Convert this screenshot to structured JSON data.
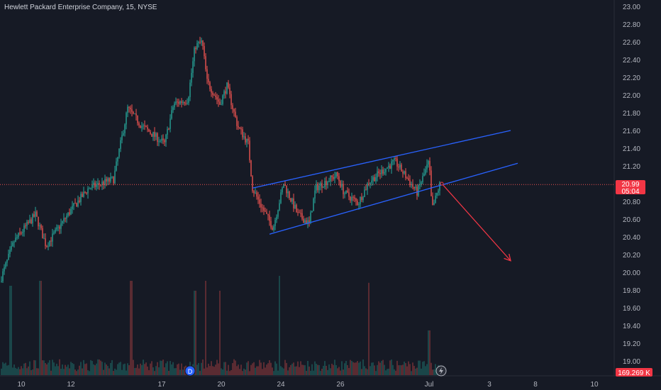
{
  "header": {
    "title": "Hewlett Packard Enterprise Company, 15, NYSE"
  },
  "colors": {
    "up": "#26a69a",
    "down": "#ef5350",
    "channel": "#2962ff",
    "arrow": "#f23645",
    "background": "#161a25"
  },
  "price_tag": {
    "price": "20.99",
    "countdown": "05:04"
  },
  "volume_tag": {
    "value": "169.269 K"
  },
  "event_badge": {
    "label": "D"
  },
  "chart_data": {
    "type": "candlestick",
    "title": "Hewlett Packard Enterprise Company, 15, NYSE",
    "ylim": [
      18.9,
      23.05
    ],
    "y_ticks": [
      "23.00",
      "22.80",
      "22.60",
      "22.40",
      "22.20",
      "22.00",
      "21.80",
      "21.60",
      "21.40",
      "21.20",
      "21.00",
      "20.80",
      "20.60",
      "20.40",
      "20.20",
      "20.00",
      "19.80",
      "19.60",
      "19.40",
      "19.20",
      "19.00"
    ],
    "x_ticks": [
      "10",
      "12",
      "17",
      "20",
      "24",
      "26",
      "Jul",
      "3",
      "8",
      "10"
    ],
    "current_price": 20.99,
    "anchors": [
      {
        "x": 0,
        "y": 19.9
      },
      {
        "x": 20,
        "y": 20.35
      },
      {
        "x": 50,
        "y": 20.65
      },
      {
        "x": 65,
        "y": 20.3
      },
      {
        "x": 100,
        "y": 20.7
      },
      {
        "x": 125,
        "y": 20.95
      },
      {
        "x": 160,
        "y": 21.05
      },
      {
        "x": 180,
        "y": 21.85
      },
      {
        "x": 200,
        "y": 21.65
      },
      {
        "x": 232,
        "y": 21.45
      },
      {
        "x": 245,
        "y": 21.9
      },
      {
        "x": 265,
        "y": 21.95
      },
      {
        "x": 275,
        "y": 22.55
      },
      {
        "x": 285,
        "y": 22.6
      },
      {
        "x": 292,
        "y": 22.15
      },
      {
        "x": 310,
        "y": 21.9
      },
      {
        "x": 320,
        "y": 22.1
      },
      {
        "x": 335,
        "y": 21.65
      },
      {
        "x": 350,
        "y": 21.45
      },
      {
        "x": 356,
        "y": 20.95
      },
      {
        "x": 365,
        "y": 20.8
      },
      {
        "x": 385,
        "y": 20.5
      },
      {
        "x": 400,
        "y": 21.0
      },
      {
        "x": 420,
        "y": 20.65
      },
      {
        "x": 436,
        "y": 20.55
      },
      {
        "x": 445,
        "y": 20.95
      },
      {
        "x": 475,
        "y": 21.1
      },
      {
        "x": 485,
        "y": 20.9
      },
      {
        "x": 505,
        "y": 20.78
      },
      {
        "x": 520,
        "y": 21.02
      },
      {
        "x": 540,
        "y": 21.15
      },
      {
        "x": 557,
        "y": 21.25
      },
      {
        "x": 575,
        "y": 21.05
      },
      {
        "x": 588,
        "y": 20.9
      },
      {
        "x": 605,
        "y": 21.25
      },
      {
        "x": 609,
        "y": 20.7
      },
      {
        "x": 620,
        "y": 20.99
      }
    ],
    "channel_upper": [
      {
        "x": 356,
        "y": 20.95
      },
      {
        "x": 720,
        "y": 21.6
      }
    ],
    "channel_lower": [
      {
        "x": 380,
        "y": 20.43
      },
      {
        "x": 730,
        "y": 21.23
      }
    ],
    "projection_arrow": [
      {
        "x": 623,
        "y": 21.0
      },
      {
        "x": 720,
        "y": 20.13
      }
    ],
    "volume_spikes": [
      {
        "x": 15,
        "h": 0.9
      },
      {
        "x": 57,
        "h": 0.95
      },
      {
        "x": 185,
        "h": 0.95
      },
      {
        "x": 275,
        "h": 0.85
      },
      {
        "x": 290,
        "h": 0.95
      },
      {
        "x": 310,
        "h": 0.85
      },
      {
        "x": 394,
        "h": 1.0
      },
      {
        "x": 520,
        "h": 0.93
      },
      {
        "x": 605,
        "h": 0.45
      }
    ]
  }
}
